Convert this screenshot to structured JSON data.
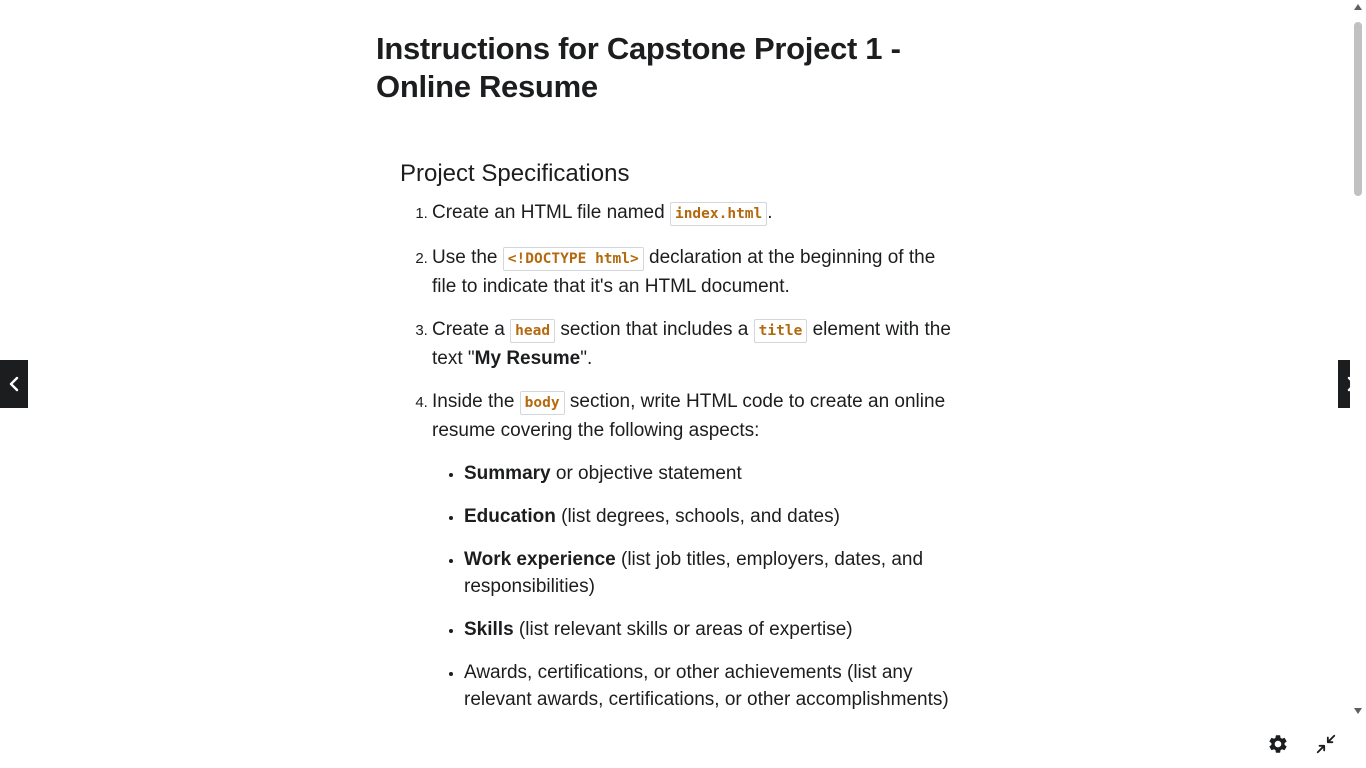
{
  "page": {
    "title": "Instructions for Capstone Project 1 - Online Resume"
  },
  "section": {
    "title": "Project Specifications"
  },
  "specs": {
    "item1": {
      "before": "Create an HTML file named ",
      "code": "index.html",
      "after": "."
    },
    "item2": {
      "before": "Use the ",
      "code": "<!DOCTYPE html>",
      "after": " declaration at the beginning of the file to indicate that it's an HTML document."
    },
    "item3": {
      "before": "Create a ",
      "code1": "head",
      "middle": " section that includes a ",
      "code2": "title",
      "after": " element with the text \"",
      "bold": "My Resume",
      "end": "\"."
    },
    "item4": {
      "before": "Inside the ",
      "code": "body",
      "after": " section, write HTML code to create an online resume covering the following aspects:"
    }
  },
  "aspects": [
    {
      "bold": "Summary",
      "text": " or objective statement"
    },
    {
      "bold": "Education",
      "text": " (list degrees, schools, and dates)"
    },
    {
      "bold": "Work experience",
      "text": " (list job titles, employers, dates, and responsibilities)"
    },
    {
      "bold": "Skills",
      "text": " (list relevant skills or areas of expertise)"
    },
    {
      "bold": "",
      "text": "Awards, certifications, or other achievements (list any relevant awards, certifications, or other accomplishments)"
    }
  ],
  "icons": {
    "prev": "chevron-left-icon",
    "next": "chevron-right-icon",
    "settings": "gear-icon",
    "collapse": "collapse-icon"
  },
  "colors": {
    "code_text": "#b4690e",
    "text": "#1c1d1f",
    "nav_bg": "#1c1d1f"
  }
}
